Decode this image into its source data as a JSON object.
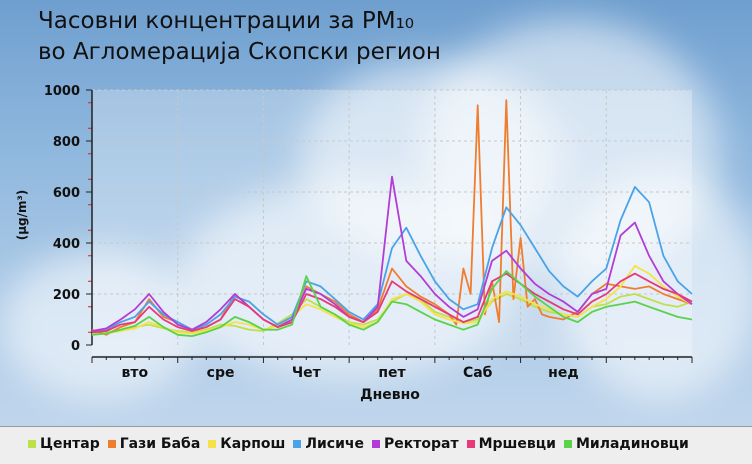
{
  "title_line1": "Часовни концентрации за PM₁₀",
  "title_line2": "во Агломерација Скопски регион",
  "chart_data": {
    "type": "line",
    "title": "Часовни концентрации за PM₁₀ во Агломерација Скопски регион",
    "xlabel": "Дневно",
    "ylabel": "(µg/m³)",
    "ylim": [
      0,
      1000
    ],
    "yticks": [
      0,
      200,
      400,
      600,
      800,
      1000
    ],
    "xlim": [
      0,
      168
    ],
    "categories": [
      "вто",
      "сре",
      "Чет",
      "пет",
      "Саб",
      "нед"
    ],
    "category_x": [
      12,
      36,
      60,
      84,
      108,
      132
    ],
    "grid": true,
    "legend_position": "bottom",
    "series": [
      {
        "name": "Центар",
        "color": "#bfe04a",
        "x": [
          0,
          4,
          8,
          12,
          16,
          20,
          24,
          28,
          32,
          36,
          40,
          44,
          48,
          52,
          56,
          60,
          64,
          68,
          72,
          76,
          80,
          84,
          88,
          92,
          96,
          100,
          104,
          108,
          112,
          116,
          120,
          124,
          128,
          132,
          136,
          140,
          144,
          148,
          152,
          156,
          160,
          164,
          168
        ],
        "values": [
          45,
          50,
          60,
          70,
          80,
          65,
          55,
          50,
          60,
          80,
          75,
          60,
          55,
          85,
          120,
          180,
          150,
          120,
          90,
          80,
          100,
          170,
          200,
          180,
          130,
          110,
          90,
          100,
          170,
          200,
          180,
          150,
          130,
          120,
          110,
          150,
          160,
          190,
          200,
          180,
          160,
          150,
          170
        ]
      },
      {
        "name": "Гази Баба",
        "color": "#f07d2e",
        "x": [
          0,
          4,
          8,
          12,
          16,
          20,
          24,
          28,
          32,
          36,
          40,
          44,
          48,
          52,
          56,
          60,
          64,
          68,
          72,
          76,
          80,
          84,
          88,
          92,
          96,
          100,
          102,
          104,
          106,
          108,
          110,
          112,
          114,
          116,
          118,
          120,
          122,
          124,
          126,
          128,
          132,
          136,
          140,
          144,
          148,
          152,
          156,
          160,
          164,
          168
        ],
        "values": [
          60,
          40,
          70,
          90,
          180,
          110,
          90,
          60,
          70,
          100,
          200,
          150,
          100,
          70,
          90,
          230,
          200,
          170,
          120,
          90,
          140,
          300,
          230,
          190,
          160,
          120,
          80,
          300,
          200,
          940,
          120,
          250,
          90,
          960,
          180,
          420,
          150,
          180,
          120,
          110,
          100,
          130,
          200,
          240,
          230,
          220,
          230,
          200,
          180,
          160
        ]
      },
      {
        "name": "Карпош",
        "color": "#f5e24a",
        "x": [
          0,
          4,
          8,
          12,
          16,
          20,
          24,
          28,
          32,
          36,
          40,
          44,
          48,
          52,
          56,
          60,
          64,
          68,
          72,
          76,
          80,
          84,
          88,
          92,
          96,
          100,
          104,
          108,
          112,
          116,
          120,
          124,
          128,
          132,
          136,
          140,
          144,
          148,
          152,
          156,
          160,
          164,
          168
        ],
        "values": [
          40,
          45,
          55,
          65,
          90,
          70,
          50,
          45,
          55,
          70,
          90,
          80,
          60,
          75,
          110,
          160,
          140,
          110,
          85,
          70,
          90,
          180,
          200,
          170,
          120,
          100,
          85,
          90,
          180,
          210,
          190,
          160,
          140,
          120,
          110,
          150,
          180,
          230,
          310,
          280,
          230,
          190,
          160
        ]
      },
      {
        "name": "Лисиче",
        "color": "#4aa3e8",
        "x": [
          0,
          4,
          8,
          12,
          16,
          20,
          24,
          28,
          32,
          36,
          40,
          44,
          48,
          52,
          56,
          60,
          64,
          68,
          72,
          76,
          80,
          84,
          88,
          92,
          96,
          100,
          104,
          108,
          112,
          116,
          120,
          124,
          128,
          132,
          136,
          140,
          144,
          148,
          152,
          156,
          160,
          164,
          168
        ],
        "values": [
          50,
          60,
          90,
          110,
          170,
          120,
          90,
          60,
          80,
          120,
          190,
          170,
          120,
          80,
          110,
          250,
          230,
          180,
          130,
          100,
          160,
          380,
          460,
          350,
          250,
          180,
          140,
          160,
          380,
          540,
          470,
          380,
          290,
          230,
          190,
          250,
          300,
          490,
          620,
          560,
          350,
          250,
          200
        ]
      },
      {
        "name": "Ректорат",
        "color": "#b23cd6",
        "x": [
          0,
          4,
          8,
          12,
          16,
          20,
          24,
          28,
          32,
          36,
          40,
          44,
          48,
          52,
          56,
          60,
          64,
          68,
          72,
          76,
          80,
          84,
          88,
          92,
          96,
          100,
          104,
          108,
          112,
          116,
          120,
          124,
          128,
          132,
          136,
          140,
          144,
          148,
          152,
          156,
          160,
          164,
          168
        ],
        "values": [
          55,
          65,
          100,
          140,
          200,
          130,
          80,
          60,
          90,
          140,
          200,
          150,
          100,
          70,
          100,
          220,
          200,
          160,
          110,
          90,
          150,
          660,
          330,
          270,
          200,
          150,
          110,
          140,
          330,
          370,
          300,
          240,
          200,
          170,
          130,
          200,
          220,
          430,
          480,
          350,
          250,
          200,
          160
        ]
      },
      {
        "name": "Мршевци",
        "color": "#e63a7a",
        "x": [
          0,
          4,
          8,
          12,
          16,
          20,
          24,
          28,
          32,
          36,
          40,
          44,
          48,
          52,
          56,
          60,
          64,
          68,
          72,
          76,
          80,
          84,
          88,
          92,
          96,
          100,
          104,
          108,
          112,
          116,
          120,
          124,
          128,
          132,
          136,
          140,
          144,
          148,
          152,
          156,
          160,
          164,
          168
        ],
        "values": [
          50,
          55,
          80,
          90,
          150,
          100,
          70,
          55,
          70,
          100,
          180,
          150,
          100,
          70,
          90,
          200,
          180,
          150,
          110,
          90,
          130,
          250,
          210,
          180,
          150,
          120,
          90,
          110,
          250,
          280,
          240,
          200,
          170,
          140,
          120,
          170,
          200,
          250,
          280,
          250,
          220,
          200,
          170
        ]
      },
      {
        "name": "Миладиновци",
        "color": "#5ad24a",
        "x": [
          0,
          4,
          8,
          12,
          16,
          20,
          24,
          28,
          32,
          36,
          40,
          44,
          48,
          52,
          56,
          60,
          64,
          68,
          72,
          76,
          80,
          84,
          88,
          92,
          96,
          100,
          104,
          108,
          112,
          116,
          120,
          124,
          128,
          132,
          136,
          140,
          144,
          148,
          152,
          156,
          160,
          164,
          168
        ],
        "values": [
          40,
          45,
          60,
          75,
          110,
          70,
          40,
          35,
          50,
          70,
          110,
          90,
          60,
          60,
          80,
          270,
          150,
          120,
          80,
          60,
          90,
          170,
          160,
          130,
          100,
          80,
          60,
          80,
          220,
          290,
          240,
          190,
          150,
          110,
          90,
          130,
          150,
          160,
          170,
          150,
          130,
          110,
          100
        ]
      }
    ]
  }
}
